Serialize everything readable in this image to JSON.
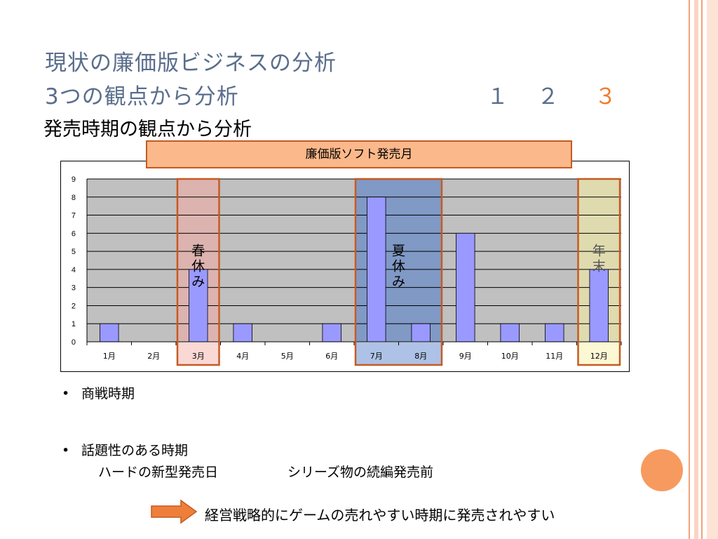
{
  "slide": {
    "title_line1": "現状の廉価版ビジネスの分析",
    "title_line2": "3つの観点から分析",
    "page_numbers": [
      "１",
      "２",
      "３"
    ],
    "current_page": "３",
    "subtitle": "発売時期の観点から分析",
    "banner": "廉価版ソフト発売月",
    "bullets": [
      {
        "text": "商戦時期"
      },
      {
        "text": "話題性のある時期"
      }
    ],
    "sublines": [
      "ハードの新型発売日",
      "シリーズ物の続編発売前"
    ],
    "conclusion": "経営戦略的にゲームの売れやすい時期に発売されやすい",
    "bullet_char": "•",
    "colors": {
      "title": "#5a6e8c",
      "accent": "#f07c2c",
      "rail": "#f6a07a",
      "circle": "#f79a5f",
      "arrow": "#ee7f3b"
    }
  },
  "chart_data": {
    "type": "bar",
    "categories": [
      "1月",
      "2月",
      "3月",
      "4月",
      "5月",
      "6月",
      "7月",
      "8月",
      "9月",
      "10月",
      "11月",
      "12月"
    ],
    "values": [
      1,
      0,
      4,
      1,
      0,
      1,
      8,
      1,
      6,
      1,
      1,
      4
    ],
    "ylim": [
      0,
      9
    ],
    "yticks": [
      0,
      1,
      2,
      3,
      4,
      5,
      6,
      7,
      8,
      9
    ],
    "grid": true,
    "bar_color": "#9999ff",
    "plot_background": "#c0c0c0",
    "highlights": [
      {
        "label": "春休み",
        "months": [
          "3月"
        ],
        "fill": "#f4a8a0",
        "border": "#c65a22",
        "text_color": "#000000"
      },
      {
        "label": "夏休み",
        "months": [
          "7月",
          "8月"
        ],
        "fill": "#4a78c8",
        "border": "#c65a22",
        "text_color": "#000000"
      },
      {
        "label": "年末",
        "months": [
          "12月"
        ],
        "fill": "#f8f0a0",
        "border": "#c65a22",
        "text_color": "#555555"
      }
    ]
  }
}
